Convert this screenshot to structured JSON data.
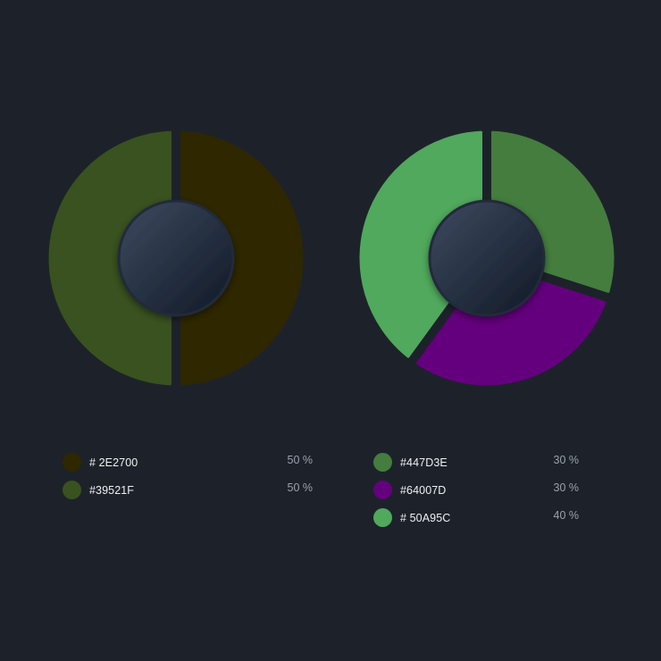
{
  "chart_data": [
    {
      "type": "pie",
      "style": "donut",
      "series": [
        {
          "label": "# 2E2700",
          "value": 50,
          "value_label": "50 %",
          "color": "#2e2700"
        },
        {
          "label": "#39521F",
          "value": 50,
          "value_label": "50 %",
          "color": "#39521f"
        }
      ]
    },
    {
      "type": "pie",
      "style": "donut",
      "series": [
        {
          "label": "#447D3E",
          "value": 30,
          "value_label": "30 %",
          "color": "#447d3e"
        },
        {
          "label": "#64007D",
          "value": 30,
          "value_label": "30 %",
          "color": "#64007d"
        },
        {
          "label": "# 50A95C",
          "value": 40,
          "value_label": "40 %",
          "color": "#50a95c"
        }
      ]
    }
  ]
}
